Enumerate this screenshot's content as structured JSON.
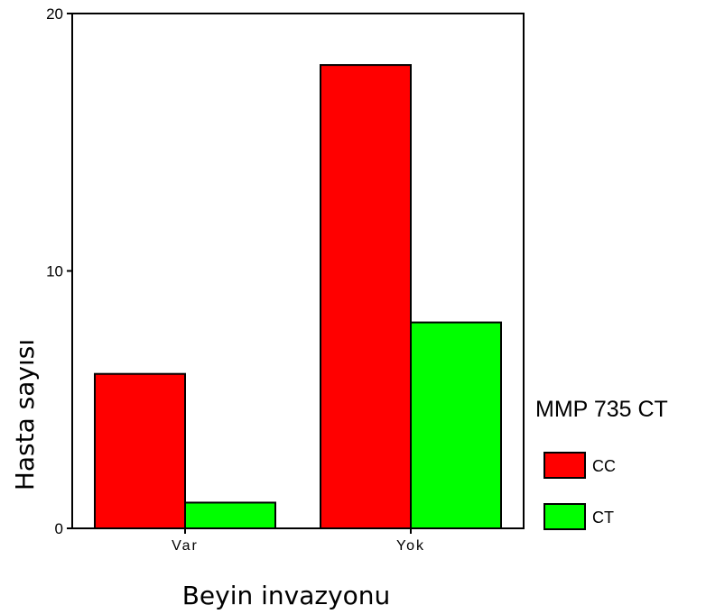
{
  "chart_data": {
    "type": "bar",
    "categories": [
      "Var",
      "Yok"
    ],
    "series": [
      {
        "name": "CC",
        "values": [
          6,
          18
        ],
        "color": "#ff0000"
      },
      {
        "name": "CT",
        "values": [
          1,
          8
        ],
        "color": "#00ff00"
      }
    ],
    "xlabel": "Beyin invazyonu",
    "ylabel": "Hasta sayısı",
    "ylim": [
      0,
      20
    ],
    "yticks": [
      0,
      10,
      20
    ],
    "legend_title": "MMP 735 CT",
    "legend_position": "right",
    "grid": false
  }
}
